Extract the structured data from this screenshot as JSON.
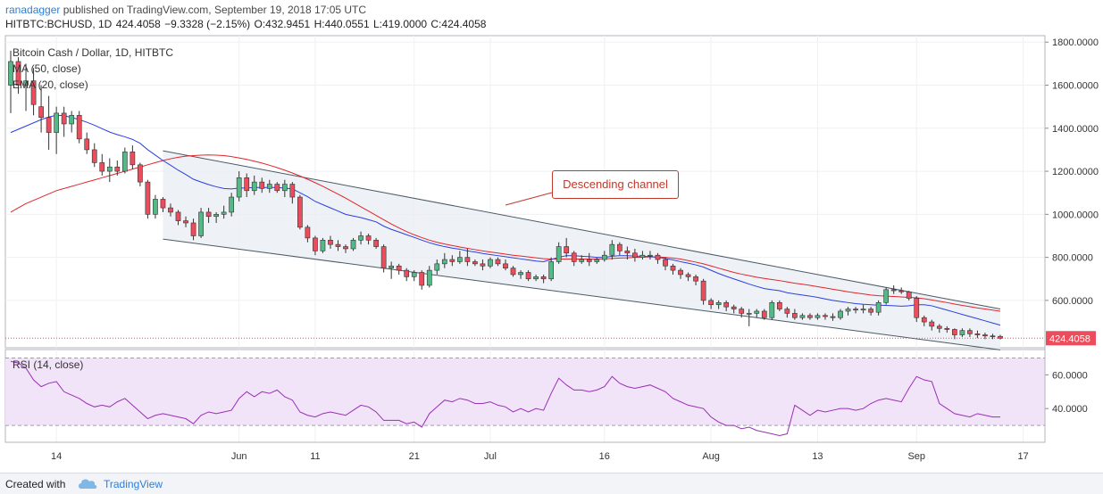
{
  "header": {
    "author": "ranadagger",
    "published": "published on TradingView.com, September 19, 2018 17:05 UTC",
    "symbol": "HITBTC:BCHUSD, 1D",
    "last": "424.4058",
    "change": "−9.3328 (−2.15%)",
    "open": "O:432.9451",
    "high": "H:440.0551",
    "low": "L:419.0000",
    "close": "C:424.4058"
  },
  "legend": {
    "title": "Bitcoin Cash / Dollar, 1D, HITBTC",
    "ma": "MA (50, close)",
    "ema": "EMA (20, close)",
    "rsi": "RSI (14, close)"
  },
  "annotation": "Descending channel",
  "price_label": "424.4058",
  "footer": {
    "created_with": "Created with",
    "brand": "TradingView"
  },
  "colors": {
    "up": "#53b987",
    "down": "#eb4d5c",
    "ma": "#e0262b",
    "ema": "#2b3fe0",
    "rsi": "#9a2fb6",
    "channel": "#4a5a66"
  },
  "chart_data": {
    "type": "candlestick",
    "x_ticks": [
      "14",
      "Jun",
      "11",
      "21",
      "Jul",
      "16",
      "Aug",
      "13",
      "Sep",
      "17"
    ],
    "y_ticks": [
      "1800.0000",
      "1600.0000",
      "1400.0000",
      "1200.0000",
      "1000.0000",
      "800.0000",
      "600.0000"
    ],
    "ylim": [
      380,
      1830
    ],
    "rsi_ticks": [
      "60.0000",
      "40.0000"
    ],
    "rsi_lim": [
      20,
      75
    ],
    "rsi_bands": [
      70,
      30
    ],
    "last_price": 424.4058,
    "candles": [
      [
        1600,
        1760,
        1470,
        1710
      ],
      [
        1710,
        1730,
        1560,
        1600
      ],
      [
        1600,
        1700,
        1480,
        1620
      ],
      [
        1620,
        1680,
        1460,
        1510
      ],
      [
        1500,
        1600,
        1380,
        1450
      ],
      [
        1450,
        1550,
        1300,
        1380
      ],
      [
        1380,
        1500,
        1280,
        1470
      ],
      [
        1470,
        1500,
        1360,
        1420
      ],
      [
        1420,
        1480,
        1380,
        1460
      ],
      [
        1460,
        1480,
        1330,
        1350
      ],
      [
        1350,
        1380,
        1280,
        1300
      ],
      [
        1300,
        1330,
        1220,
        1240
      ],
      [
        1240,
        1280,
        1180,
        1200
      ],
      [
        1200,
        1260,
        1150,
        1220
      ],
      [
        1220,
        1250,
        1180,
        1200
      ],
      [
        1200,
        1310,
        1190,
        1290
      ],
      [
        1290,
        1320,
        1210,
        1230
      ],
      [
        1230,
        1240,
        1130,
        1150
      ],
      [
        1150,
        1160,
        980,
        1000
      ],
      [
        1000,
        1090,
        980,
        1070
      ],
      [
        1070,
        1080,
        1010,
        1030
      ],
      [
        1030,
        1050,
        990,
        1010
      ],
      [
        1010,
        1020,
        950,
        970
      ],
      [
        970,
        990,
        940,
        960
      ],
      [
        960,
        980,
        880,
        900
      ],
      [
        900,
        1030,
        890,
        1010
      ],
      [
        1010,
        1030,
        960,
        990
      ],
      [
        990,
        1010,
        960,
        1000
      ],
      [
        1000,
        1040,
        980,
        1010
      ],
      [
        1010,
        1100,
        990,
        1080
      ],
      [
        1080,
        1200,
        1060,
        1170
      ],
      [
        1170,
        1190,
        1080,
        1110
      ],
      [
        1110,
        1180,
        1090,
        1150
      ],
      [
        1150,
        1170,
        1100,
        1120
      ],
      [
        1120,
        1160,
        1100,
        1140
      ],
      [
        1140,
        1150,
        1100,
        1110
      ],
      [
        1110,
        1160,
        1080,
        1140
      ],
      [
        1140,
        1150,
        1050,
        1080
      ],
      [
        1080,
        1090,
        930,
        940
      ],
      [
        940,
        950,
        870,
        890
      ],
      [
        890,
        900,
        810,
        830
      ],
      [
        830,
        890,
        820,
        880
      ],
      [
        880,
        900,
        840,
        860
      ],
      [
        860,
        880,
        830,
        850
      ],
      [
        850,
        860,
        820,
        840
      ],
      [
        840,
        890,
        830,
        880
      ],
      [
        880,
        920,
        860,
        900
      ],
      [
        900,
        910,
        860,
        880
      ],
      [
        880,
        890,
        840,
        850
      ],
      [
        850,
        860,
        730,
        750
      ],
      [
        750,
        780,
        700,
        760
      ],
      [
        760,
        770,
        720,
        740
      ],
      [
        740,
        750,
        690,
        710
      ],
      [
        710,
        740,
        690,
        730
      ],
      [
        730,
        740,
        650,
        670
      ],
      [
        670,
        760,
        660,
        740
      ],
      [
        740,
        790,
        720,
        770
      ],
      [
        770,
        820,
        750,
        790
      ],
      [
        790,
        810,
        760,
        780
      ],
      [
        780,
        830,
        770,
        800
      ],
      [
        800,
        840,
        760,
        780
      ],
      [
        780,
        790,
        760,
        770
      ],
      [
        770,
        790,
        740,
        760
      ],
      [
        760,
        800,
        750,
        790
      ],
      [
        790,
        800,
        760,
        770
      ],
      [
        770,
        790,
        740,
        750
      ],
      [
        750,
        760,
        710,
        720
      ],
      [
        720,
        740,
        700,
        730
      ],
      [
        730,
        740,
        690,
        700
      ],
      [
        700,
        720,
        690,
        710
      ],
      [
        710,
        720,
        680,
        700
      ],
      [
        700,
        800,
        690,
        780
      ],
      [
        780,
        870,
        770,
        850
      ],
      [
        850,
        890,
        800,
        820
      ],
      [
        820,
        830,
        760,
        780
      ],
      [
        780,
        810,
        770,
        790
      ],
      [
        790,
        820,
        760,
        780
      ],
      [
        780,
        800,
        770,
        790
      ],
      [
        790,
        830,
        780,
        810
      ],
      [
        810,
        880,
        790,
        860
      ],
      [
        860,
        870,
        810,
        830
      ],
      [
        830,
        850,
        790,
        820
      ],
      [
        820,
        840,
        780,
        800
      ],
      [
        800,
        830,
        790,
        810
      ],
      [
        810,
        830,
        790,
        810
      ],
      [
        810,
        820,
        770,
        790
      ],
      [
        790,
        800,
        740,
        760
      ],
      [
        760,
        770,
        720,
        740
      ],
      [
        740,
        750,
        700,
        720
      ],
      [
        720,
        730,
        690,
        710
      ],
      [
        710,
        720,
        670,
        690
      ],
      [
        690,
        700,
        580,
        600
      ],
      [
        600,
        610,
        560,
        580
      ],
      [
        580,
        600,
        560,
        590
      ],
      [
        590,
        600,
        550,
        570
      ],
      [
        570,
        580,
        540,
        560
      ],
      [
        560,
        570,
        520,
        540
      ],
      [
        540,
        560,
        480,
        540
      ],
      [
        540,
        560,
        520,
        550
      ],
      [
        550,
        560,
        510,
        520
      ],
      [
        520,
        600,
        510,
        590
      ],
      [
        590,
        600,
        550,
        560
      ],
      [
        560,
        570,
        520,
        540
      ],
      [
        540,
        560,
        510,
        520
      ],
      [
        520,
        540,
        510,
        530
      ],
      [
        530,
        540,
        510,
        520
      ],
      [
        520,
        540,
        510,
        530
      ],
      [
        530,
        540,
        510,
        525
      ],
      [
        525,
        540,
        505,
        520
      ],
      [
        520,
        560,
        510,
        550
      ],
      [
        550,
        570,
        530,
        560
      ],
      [
        560,
        570,
        540,
        555
      ],
      [
        555,
        580,
        540,
        560
      ],
      [
        560,
        570,
        530,
        545
      ],
      [
        545,
        600,
        530,
        590
      ],
      [
        590,
        660,
        580,
        650
      ],
      [
        650,
        670,
        630,
        645
      ],
      [
        645,
        660,
        630,
        640
      ],
      [
        640,
        645,
        600,
        610
      ],
      [
        610,
        620,
        500,
        520
      ],
      [
        520,
        530,
        480,
        500
      ],
      [
        500,
        510,
        460,
        480
      ],
      [
        480,
        490,
        450,
        470
      ],
      [
        470,
        480,
        450,
        465
      ],
      [
        465,
        470,
        420,
        440
      ],
      [
        440,
        470,
        430,
        460
      ],
      [
        460,
        470,
        430,
        445
      ],
      [
        445,
        460,
        425,
        440
      ],
      [
        440,
        450,
        420,
        435
      ],
      [
        435,
        445,
        420,
        433
      ],
      [
        433,
        440,
        419,
        424
      ]
    ],
    "ma50": [
      1010,
      1030,
      1050,
      1065,
      1080,
      1095,
      1110,
      1120,
      1130,
      1140,
      1150,
      1160,
      1170,
      1180,
      1190,
      1200,
      1210,
      1220,
      1230,
      1240,
      1250,
      1258,
      1265,
      1270,
      1273,
      1275,
      1276,
      1275,
      1273,
      1268,
      1262,
      1255,
      1247,
      1238,
      1228,
      1217,
      1205,
      1192,
      1178,
      1163,
      1147,
      1130,
      1112,
      1094,
      1075,
      1055,
      1035,
      1015,
      995,
      975,
      955,
      937,
      920,
      905,
      892,
      880,
      870,
      862,
      855,
      848,
      842,
      836,
      830,
      825,
      820,
      815,
      810,
      806,
      802,
      798,
      794,
      792,
      792,
      792,
      792,
      792,
      792,
      792,
      793,
      795,
      797,
      798,
      800,
      801,
      802,
      802,
      800,
      797,
      792,
      785,
      778,
      770,
      760,
      750,
      740,
      730,
      722,
      715,
      708,
      702,
      697,
      692,
      686,
      680,
      675,
      670,
      664,
      658,
      652,
      646,
      640,
      635,
      630,
      625,
      622,
      620,
      618,
      616,
      614,
      612,
      608,
      602,
      596,
      590,
      583,
      577,
      571,
      565,
      560,
      555,
      550
    ],
    "ema20": [
      1380,
      1395,
      1410,
      1425,
      1440,
      1452,
      1460,
      1458,
      1450,
      1440,
      1428,
      1414,
      1398,
      1382,
      1370,
      1360,
      1348,
      1330,
      1300,
      1275,
      1250,
      1228,
      1205,
      1185,
      1163,
      1150,
      1138,
      1128,
      1120,
      1118,
      1122,
      1122,
      1125,
      1124,
      1125,
      1124,
      1122,
      1118,
      1100,
      1082,
      1060,
      1045,
      1030,
      1015,
      1000,
      992,
      985,
      975,
      965,
      945,
      930,
      918,
      905,
      893,
      880,
      868,
      858,
      850,
      843,
      838,
      830,
      825,
      818,
      813,
      808,
      803,
      798,
      793,
      788,
      783,
      780,
      790,
      800,
      808,
      808,
      805,
      803,
      800,
      800,
      805,
      808,
      808,
      806,
      805,
      803,
      800,
      795,
      788,
      780,
      773,
      765,
      755,
      740,
      725,
      712,
      700,
      688,
      676,
      665,
      655,
      650,
      645,
      636,
      630,
      625,
      620,
      614,
      607,
      600,
      595,
      590,
      585,
      582,
      580,
      578,
      577,
      575,
      573,
      575,
      580,
      580,
      575,
      565,
      555,
      545,
      535,
      525,
      515,
      505,
      495,
      485
    ],
    "rsi": [
      68,
      67,
      64,
      57,
      53,
      55,
      56,
      50,
      48,
      46,
      43,
      41,
      42,
      41,
      44,
      46,
      42,
      38,
      34,
      36,
      37,
      36,
      35,
      34,
      31,
      36,
      38,
      37,
      38,
      39,
      46,
      50,
      47,
      50,
      49,
      51,
      47,
      45,
      38,
      36,
      35,
      37,
      38,
      37,
      36,
      39,
      42,
      41,
      38,
      33,
      33,
      33,
      31,
      32,
      29,
      37,
      41,
      45,
      44,
      46,
      45,
      43,
      43,
      44,
      42,
      41,
      38,
      40,
      38,
      40,
      39,
      49,
      58,
      54,
      51,
      51,
      50,
      51,
      53,
      59,
      55,
      53,
      52,
      53,
      54,
      52,
      50,
      46,
      44,
      42,
      41,
      40,
      35,
      32,
      30,
      30,
      28,
      29,
      27,
      26,
      25,
      24,
      25,
      42,
      39,
      36,
      39,
      38,
      39,
      40,
      40,
      39,
      40,
      43,
      45,
      46,
      45,
      44,
      52,
      59,
      57,
      56,
      43,
      40,
      37,
      36,
      35,
      37,
      36,
      35,
      35
    ],
    "channel_upper": [
      [
        20,
        1295
      ],
      [
        130,
        560
      ]
    ],
    "channel_lower": [
      [
        20,
        885
      ],
      [
        130,
        370
      ]
    ],
    "x_tick_index": [
      6,
      30,
      40,
      53,
      63,
      78,
      92,
      106,
      119,
      133
    ]
  }
}
